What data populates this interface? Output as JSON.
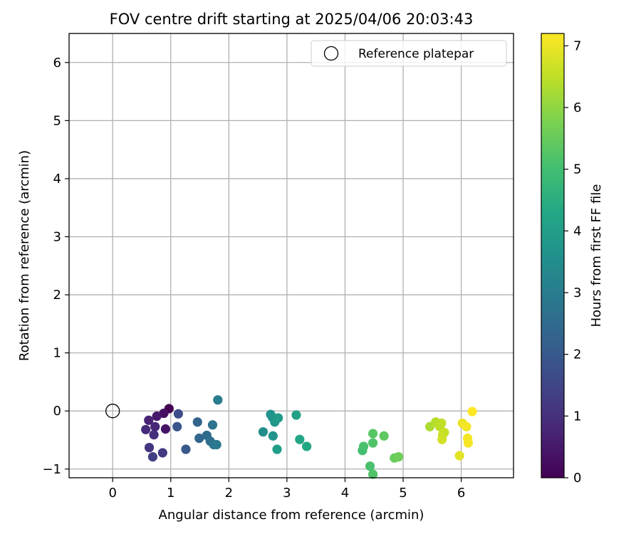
{
  "chart_data": {
    "type": "scatter",
    "title": "FOV centre drift starting at 2025/04/06 20:03:43",
    "xlabel": "Angular distance from reference (arcmin)",
    "ylabel": "Rotation from reference (arcmin)",
    "xlim": [
      -0.75,
      6.9
    ],
    "ylim": [
      -1.15,
      6.5
    ],
    "xticks": [
      0,
      1,
      2,
      3,
      4,
      5,
      6
    ],
    "yticks": [
      -1,
      0,
      1,
      2,
      3,
      4,
      5,
      6
    ],
    "grid": true,
    "legend": {
      "position": "top-right",
      "entries": [
        "Reference platepar"
      ]
    },
    "reference_point": {
      "x": 0,
      "y": 0,
      "label": "Reference platepar"
    },
    "colorbar": {
      "label": "Hours from first FF file",
      "colormap": "viridis",
      "range": [
        0,
        7.2
      ],
      "ticks": [
        0,
        1,
        2,
        3,
        4,
        5,
        6,
        7
      ]
    },
    "points": [
      {
        "x": 0.97,
        "y": 0.04,
        "hours": 0.0
      },
      {
        "x": 0.88,
        "y": -0.04,
        "hours": 0.3
      },
      {
        "x": 0.76,
        "y": -0.09,
        "hours": 0.5
      },
      {
        "x": 0.91,
        "y": -0.31,
        "hours": 0.4
      },
      {
        "x": 0.62,
        "y": -0.16,
        "hours": 0.7
      },
      {
        "x": 0.73,
        "y": -0.27,
        "hours": 0.8
      },
      {
        "x": 0.57,
        "y": -0.32,
        "hours": 0.9
      },
      {
        "x": 0.71,
        "y": -0.41,
        "hours": 1.0
      },
      {
        "x": 0.63,
        "y": -0.63,
        "hours": 1.1
      },
      {
        "x": 0.86,
        "y": -0.72,
        "hours": 1.2
      },
      {
        "x": 0.69,
        "y": -0.79,
        "hours": 1.3
      },
      {
        "x": 1.13,
        "y": -0.05,
        "hours": 1.7
      },
      {
        "x": 1.11,
        "y": -0.27,
        "hours": 1.9
      },
      {
        "x": 1.26,
        "y": -0.66,
        "hours": 2.0
      },
      {
        "x": 1.46,
        "y": -0.19,
        "hours": 2.3
      },
      {
        "x": 1.49,
        "y": -0.47,
        "hours": 2.4
      },
      {
        "x": 1.62,
        "y": -0.42,
        "hours": 2.5
      },
      {
        "x": 1.68,
        "y": -0.52,
        "hours": 2.6
      },
      {
        "x": 1.72,
        "y": -0.24,
        "hours": 2.7
      },
      {
        "x": 1.74,
        "y": -0.58,
        "hours": 2.8
      },
      {
        "x": 1.79,
        "y": -0.58,
        "hours": 2.9
      },
      {
        "x": 1.81,
        "y": 0.19,
        "hours": 3.0
      },
      {
        "x": 2.59,
        "y": -0.36,
        "hours": 3.5
      },
      {
        "x": 2.72,
        "y": -0.06,
        "hours": 3.6
      },
      {
        "x": 2.75,
        "y": -0.11,
        "hours": 3.7
      },
      {
        "x": 2.79,
        "y": -0.19,
        "hours": 3.8
      },
      {
        "x": 2.76,
        "y": -0.43,
        "hours": 3.7
      },
      {
        "x": 2.85,
        "y": -0.12,
        "hours": 3.9
      },
      {
        "x": 2.83,
        "y": -0.66,
        "hours": 4.0
      },
      {
        "x": 3.16,
        "y": -0.07,
        "hours": 4.1
      },
      {
        "x": 3.22,
        "y": -0.49,
        "hours": 4.2
      },
      {
        "x": 3.34,
        "y": -0.61,
        "hours": 4.3
      },
      {
        "x": 4.3,
        "y": -0.68,
        "hours": 5.0
      },
      {
        "x": 4.32,
        "y": -0.61,
        "hours": 5.1
      },
      {
        "x": 4.43,
        "y": -0.95,
        "hours": 5.1
      },
      {
        "x": 4.48,
        "y": -0.55,
        "hours": 5.2
      },
      {
        "x": 4.48,
        "y": -1.09,
        "hours": 5.2
      },
      {
        "x": 4.48,
        "y": -0.39,
        "hours": 5.3
      },
      {
        "x": 4.67,
        "y": -0.43,
        "hours": 5.4
      },
      {
        "x": 4.85,
        "y": -0.81,
        "hours": 5.5
      },
      {
        "x": 4.92,
        "y": -0.79,
        "hours": 5.6
      },
      {
        "x": 5.46,
        "y": -0.27,
        "hours": 6.3
      },
      {
        "x": 5.56,
        "y": -0.19,
        "hours": 6.4
      },
      {
        "x": 5.63,
        "y": -0.27,
        "hours": 6.5
      },
      {
        "x": 5.66,
        "y": -0.21,
        "hours": 6.5
      },
      {
        "x": 5.68,
        "y": -0.41,
        "hours": 6.6
      },
      {
        "x": 5.71,
        "y": -0.37,
        "hours": 6.6
      },
      {
        "x": 5.67,
        "y": -0.49,
        "hours": 6.7
      },
      {
        "x": 5.97,
        "y": -0.77,
        "hours": 6.9
      },
      {
        "x": 6.02,
        "y": -0.21,
        "hours": 7.0
      },
      {
        "x": 6.09,
        "y": -0.27,
        "hours": 7.1
      },
      {
        "x": 6.11,
        "y": -0.47,
        "hours": 7.1
      },
      {
        "x": 6.12,
        "y": -0.55,
        "hours": 7.1
      },
      {
        "x": 6.19,
        "y": -0.01,
        "hours": 7.2
      }
    ]
  }
}
